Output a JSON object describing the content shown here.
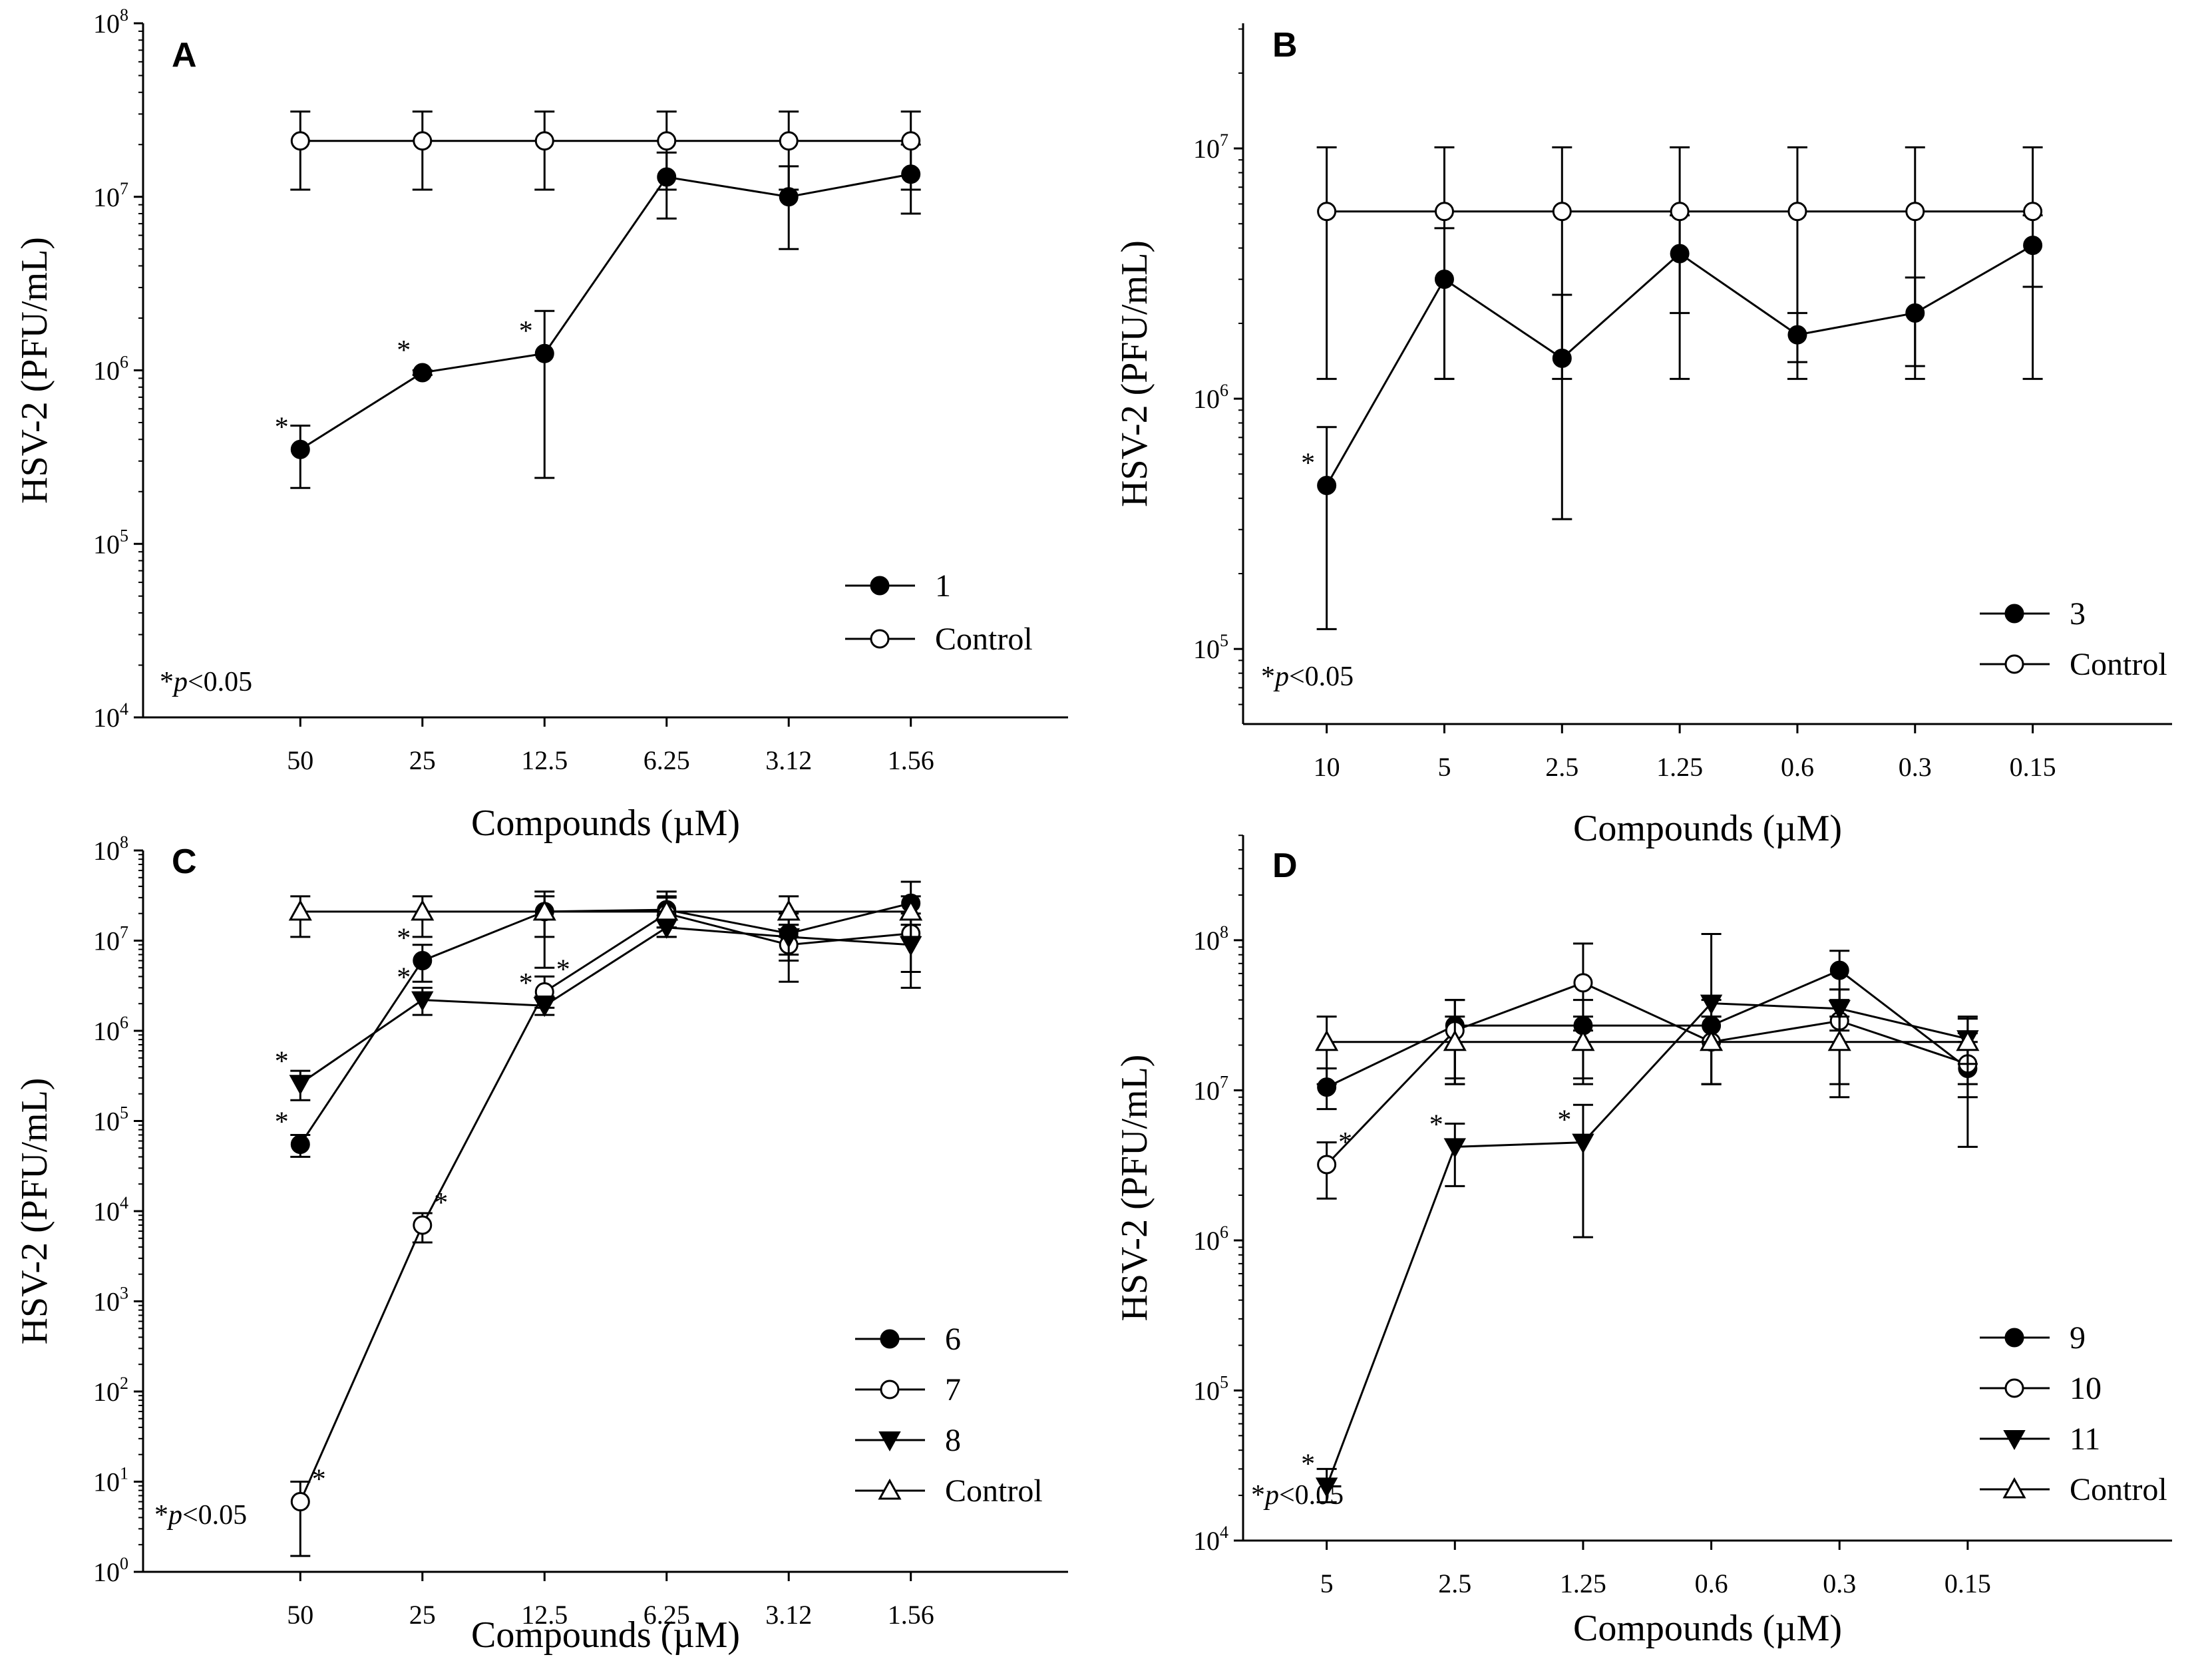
{
  "chart_data": [
    {
      "id": "A",
      "type": "line",
      "panel_label": "A",
      "ylabel": "HSV-2 (PFU/mL)",
      "xlabel": "Compounds (µM)",
      "yscale": "log",
      "ylim_exponents": [
        4,
        8
      ],
      "ytick_exponents": [
        4,
        5,
        6,
        7,
        8
      ],
      "categories": [
        "50",
        "25",
        "12.5",
        "6.25",
        "3.12",
        "1.56"
      ],
      "note": "p<0.05",
      "legend_location": "lower-right",
      "series": [
        {
          "name": "1",
          "marker": "filled-circle",
          "values": [
            350000,
            970000,
            1250000,
            13000000,
            10000000,
            13500000
          ],
          "err_low": [
            210000,
            940000,
            240000,
            7500000,
            5000000,
            8000000
          ],
          "err_high": [
            480000,
            1000000,
            2200000,
            18000000,
            15000000,
            20000000
          ],
          "significant": [
            true,
            true,
            true,
            false,
            false,
            false
          ]
        },
        {
          "name": "Control",
          "marker": "open-circle",
          "values": [
            21000000,
            21000000,
            21000000,
            21000000,
            21000000,
            21000000
          ],
          "err_low": [
            11000000,
            11000000,
            11000000,
            11000000,
            11000000,
            11000000
          ],
          "err_high": [
            31000000,
            31000000,
            31000000,
            31000000,
            31000000,
            31000000
          ],
          "significant": [
            false,
            false,
            false,
            false,
            false,
            false
          ]
        }
      ]
    },
    {
      "id": "B",
      "type": "line",
      "panel_label": "B",
      "ylabel": "HSV-2 (PFU/mL)",
      "xlabel": "Compounds (µM)",
      "yscale": "log",
      "ylim_exponents": [
        4.7,
        7.5
      ],
      "ytick_exponents": [
        5,
        6,
        7
      ],
      "categories": [
        "10",
        "5",
        "2.5",
        "1.25",
        "0.6",
        "0.3",
        "0.15"
      ],
      "note": "p<0.05",
      "legend_location": "lower-right",
      "series": [
        {
          "name": "3",
          "marker": "filled-circle",
          "values": [
            450000,
            3000000,
            1450000,
            3800000,
            1800000,
            2200000,
            4100000
          ],
          "err_low": [
            120000,
            1200000,
            330000,
            2200000,
            1400000,
            1350000,
            2800000
          ],
          "err_high": [
            770000,
            4800000,
            2600000,
            5400000,
            2200000,
            3050000,
            5400000
          ],
          "significant": [
            true,
            false,
            false,
            false,
            false,
            false,
            false
          ]
        },
        {
          "name": "Control",
          "marker": "open-circle",
          "values": [
            5600000,
            5600000,
            5600000,
            5600000,
            5600000,
            5600000,
            5600000
          ],
          "err_low": [
            1200000,
            1200000,
            1200000,
            1200000,
            1200000,
            1200000,
            1200000
          ],
          "err_high": [
            10100000,
            10100000,
            10100000,
            10100000,
            10100000,
            10100000,
            10100000
          ],
          "significant": [
            false,
            false,
            false,
            false,
            false,
            false,
            false
          ]
        }
      ]
    },
    {
      "id": "C",
      "type": "line",
      "panel_label": "C",
      "ylabel": "HSV-2 (PFU/mL)",
      "xlabel": "Compounds (µM)",
      "yscale": "log",
      "ylim_exponents": [
        0,
        8
      ],
      "ytick_exponents": [
        0,
        1,
        2,
        3,
        4,
        5,
        6,
        7,
        8
      ],
      "categories": [
        "50",
        "25",
        "12.5",
        "6.25",
        "3.12",
        "1.56"
      ],
      "note": "p<0.05",
      "legend_location": "lower-right",
      "series": [
        {
          "name": "6",
          "marker": "filled-circle",
          "values": [
            55000,
            6000000,
            21000000,
            22000000,
            12000000,
            26000000
          ],
          "err_low": [
            40000,
            3500000,
            5000000,
            14000000,
            7000000,
            15000000
          ],
          "err_high": [
            70000,
            9000000,
            35000000,
            35000000,
            20000000,
            45000000
          ],
          "significant": [
            true,
            true,
            false,
            false,
            false,
            false
          ]
        },
        {
          "name": "7",
          "marker": "open-circle",
          "values": [
            6,
            7000,
            2700000,
            20000000,
            9000000,
            12000000
          ],
          "err_low": [
            1.5,
            4500,
            1800000,
            14000000,
            3500000,
            4500000
          ],
          "err_high": [
            10,
            9500,
            4000000,
            30000000,
            15000000,
            20000000
          ],
          "significant": [
            true,
            true,
            true,
            false,
            false,
            false
          ]
        },
        {
          "name": "8",
          "marker": "filled-triangle-down",
          "values": [
            260000,
            2200000,
            1900000,
            14000000,
            11000000,
            9000000
          ],
          "err_low": [
            170000,
            1500000,
            1500000,
            11000000,
            6000000,
            3000000
          ],
          "err_high": [
            360000,
            3000000,
            2400000,
            19000000,
            15000000,
            15000000
          ],
          "significant": [
            true,
            true,
            true,
            false,
            false,
            false
          ]
        },
        {
          "name": "Control",
          "marker": "open-triangle-up",
          "values": [
            21000000,
            21000000,
            21000000,
            21000000,
            21000000,
            21000000
          ],
          "err_low": [
            11000000,
            11000000,
            11000000,
            11000000,
            11000000,
            11000000
          ],
          "err_high": [
            31000000,
            31000000,
            31000000,
            31000000,
            31000000,
            31000000
          ],
          "significant": [
            false,
            false,
            false,
            false,
            false,
            false
          ]
        }
      ]
    },
    {
      "id": "D",
      "type": "line",
      "panel_label": "D",
      "ylabel": "HSV-2 (PFU/mL)",
      "xlabel": "Compounds (µM)",
      "yscale": "log",
      "ylim_exponents": [
        4,
        8.7
      ],
      "ytick_exponents": [
        4,
        5,
        6,
        7,
        8
      ],
      "categories": [
        "5",
        "2.5",
        "1.25",
        "0.6",
        "0.3",
        "0.15"
      ],
      "note": "p<0.05",
      "legend_location": "lower-right",
      "series": [
        {
          "name": "9",
          "marker": "filled-circle",
          "values": [
            10500000,
            27000000,
            27000000,
            27000000,
            63000000,
            14000000
          ],
          "err_low": [
            7500000,
            12000000,
            12000000,
            11000000,
            40000000,
            4200000
          ],
          "err_high": [
            14000000,
            40000000,
            40000000,
            40000000,
            85000000,
            24000000
          ],
          "significant": [
            false,
            false,
            false,
            false,
            false,
            false
          ]
        },
        {
          "name": "10",
          "marker": "open-circle",
          "values": [
            3200000,
            25000000,
            52000000,
            21000000,
            29000000,
            15000000
          ],
          "err_low": [
            1900000,
            11000000,
            25000000,
            11000000,
            9000000,
            9000000
          ],
          "err_high": [
            4500000,
            40000000,
            95000000,
            31000000,
            47000000,
            21000000
          ],
          "significant": [
            true,
            false,
            false,
            false,
            false,
            false
          ]
        },
        {
          "name": "11",
          "marker": "filled-triangle-down",
          "values": [
            23000,
            4200000,
            4500000,
            38000000,
            35000000,
            22000000
          ],
          "err_low": [
            18000,
            2300000,
            1050000,
            11000000,
            25000000,
            15000000
          ],
          "err_high": [
            30000,
            6000000,
            8000000,
            110000000,
            47000000,
            30000000
          ],
          "significant": [
            true,
            true,
            true,
            false,
            false,
            false
          ]
        },
        {
          "name": "Control",
          "marker": "open-triangle-up",
          "values": [
            21000000,
            21000000,
            21000000,
            21000000,
            21000000,
            21000000
          ],
          "err_low": [
            11000000,
            11000000,
            11000000,
            11000000,
            11000000,
            11000000
          ],
          "err_high": [
            31000000,
            31000000,
            31000000,
            31000000,
            31000000,
            31000000
          ],
          "significant": [
            false,
            false,
            false,
            false,
            false,
            false
          ]
        }
      ]
    }
  ]
}
